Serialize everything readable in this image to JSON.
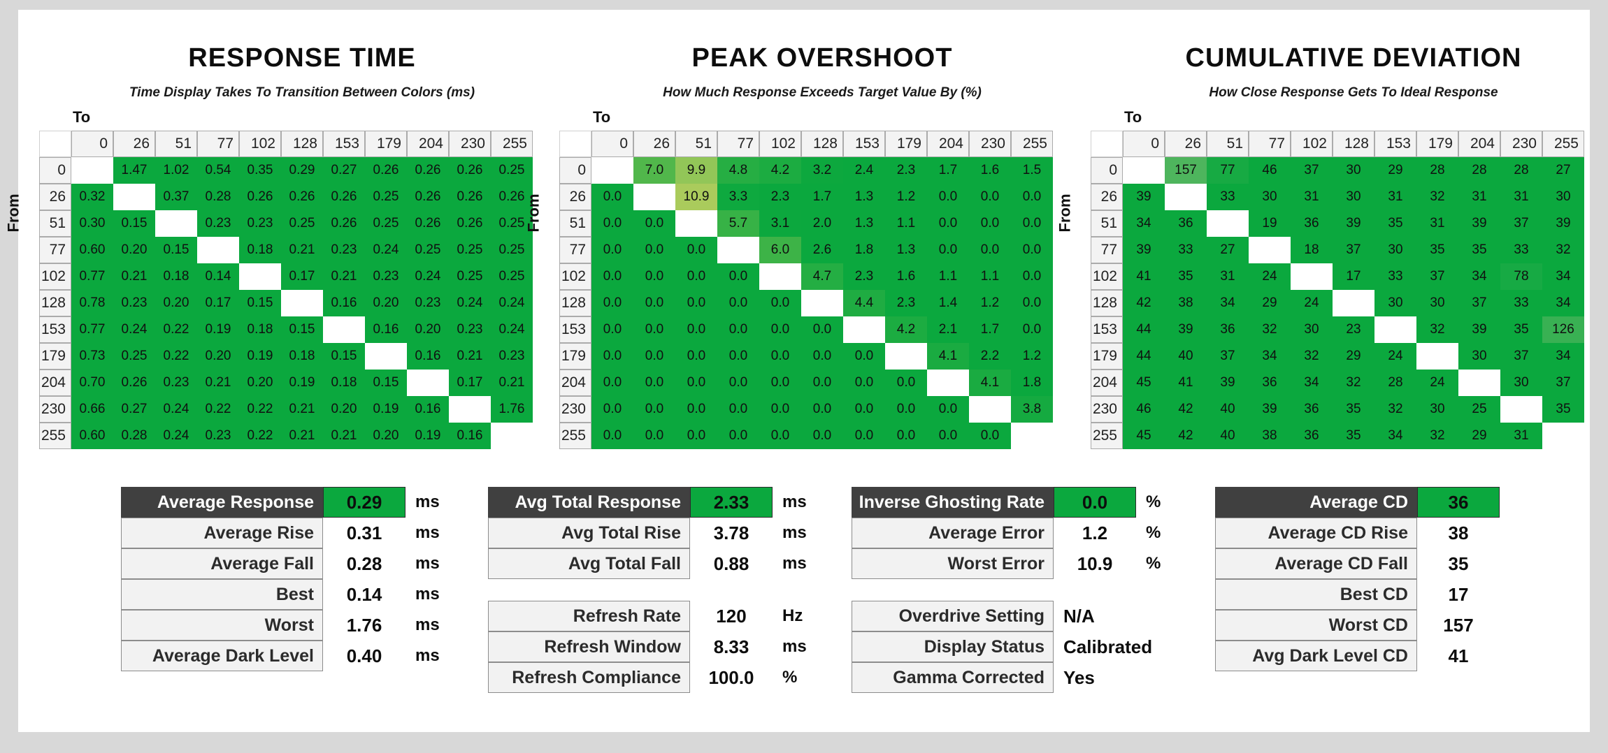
{
  "page_background": "#d8d8d8",
  "sheet_background": "#ffffff",
  "colors": {
    "base_green": "#0ba83e",
    "overshoot_max_green": "#aacb5c",
    "cd_max_green": "#50b55e",
    "dark_header": "#404040",
    "label_cell_bg": "#f2f2f2"
  },
  "axis": {
    "to_label": "To",
    "from_label": "From",
    "levels": [
      "0",
      "26",
      "51",
      "77",
      "102",
      "128",
      "153",
      "179",
      "204",
      "230",
      "255"
    ]
  },
  "chart_data": [
    {
      "type": "heatmap",
      "title": "RESPONSE TIME",
      "subtitle": "Time Display Takes To Transition Between Colors (ms)",
      "unit": "ms",
      "color_scale": "response",
      "x": [
        "0",
        "26",
        "51",
        "77",
        "102",
        "128",
        "153",
        "179",
        "204",
        "230",
        "255"
      ],
      "y": [
        "0",
        "26",
        "51",
        "77",
        "102",
        "128",
        "153",
        "179",
        "204",
        "230",
        "255"
      ],
      "values": [
        [
          null,
          "1.47",
          "1.02",
          "0.54",
          "0.35",
          "0.29",
          "0.27",
          "0.26",
          "0.26",
          "0.26",
          "0.25"
        ],
        [
          "0.32",
          null,
          "0.37",
          "0.28",
          "0.26",
          "0.26",
          "0.26",
          "0.25",
          "0.26",
          "0.26",
          "0.26"
        ],
        [
          "0.30",
          "0.15",
          null,
          "0.23",
          "0.23",
          "0.25",
          "0.26",
          "0.25",
          "0.26",
          "0.26",
          "0.25"
        ],
        [
          "0.60",
          "0.20",
          "0.15",
          null,
          "0.18",
          "0.21",
          "0.23",
          "0.24",
          "0.25",
          "0.25",
          "0.25"
        ],
        [
          "0.77",
          "0.21",
          "0.18",
          "0.14",
          null,
          "0.17",
          "0.21",
          "0.23",
          "0.24",
          "0.25",
          "0.25"
        ],
        [
          "0.78",
          "0.23",
          "0.20",
          "0.17",
          "0.15",
          null,
          "0.16",
          "0.20",
          "0.23",
          "0.24",
          "0.24"
        ],
        [
          "0.77",
          "0.24",
          "0.22",
          "0.19",
          "0.18",
          "0.15",
          null,
          "0.16",
          "0.20",
          "0.23",
          "0.24"
        ],
        [
          "0.73",
          "0.25",
          "0.22",
          "0.20",
          "0.19",
          "0.18",
          "0.15",
          null,
          "0.16",
          "0.21",
          "0.23"
        ],
        [
          "0.70",
          "0.26",
          "0.23",
          "0.21",
          "0.20",
          "0.19",
          "0.18",
          "0.15",
          null,
          "0.17",
          "0.21"
        ],
        [
          "0.66",
          "0.27",
          "0.24",
          "0.22",
          "0.22",
          "0.21",
          "0.20",
          "0.19",
          "0.16",
          null,
          "1.76"
        ],
        [
          "0.60",
          "0.28",
          "0.24",
          "0.23",
          "0.22",
          "0.21",
          "0.21",
          "0.20",
          "0.19",
          "0.16",
          null
        ]
      ]
    },
    {
      "type": "heatmap",
      "title": "PEAK OVERSHOOT",
      "subtitle": "How Much Response Exceeds Target Value By (%)",
      "unit": "%",
      "color_scale": "overshoot",
      "x": [
        "0",
        "26",
        "51",
        "77",
        "102",
        "128",
        "153",
        "179",
        "204",
        "230",
        "255"
      ],
      "y": [
        "0",
        "26",
        "51",
        "77",
        "102",
        "128",
        "153",
        "179",
        "204",
        "230",
        "255"
      ],
      "values": [
        [
          null,
          "7.0",
          "9.9",
          "4.8",
          "4.2",
          "3.2",
          "2.4",
          "2.3",
          "1.7",
          "1.6",
          "1.5"
        ],
        [
          "0.0",
          null,
          "10.9",
          "3.3",
          "2.3",
          "1.7",
          "1.3",
          "1.2",
          "0.0",
          "0.0",
          "0.0"
        ],
        [
          "0.0",
          "0.0",
          null,
          "5.7",
          "3.1",
          "2.0",
          "1.3",
          "1.1",
          "0.0",
          "0.0",
          "0.0"
        ],
        [
          "0.0",
          "0.0",
          "0.0",
          null,
          "6.0",
          "2.6",
          "1.8",
          "1.3",
          "0.0",
          "0.0",
          "0.0"
        ],
        [
          "0.0",
          "0.0",
          "0.0",
          "0.0",
          null,
          "4.7",
          "2.3",
          "1.6",
          "1.1",
          "1.1",
          "0.0"
        ],
        [
          "0.0",
          "0.0",
          "0.0",
          "0.0",
          "0.0",
          null,
          "4.4",
          "2.3",
          "1.4",
          "1.2",
          "0.0"
        ],
        [
          "0.0",
          "0.0",
          "0.0",
          "0.0",
          "0.0",
          "0.0",
          null,
          "4.2",
          "2.1",
          "1.7",
          "0.0"
        ],
        [
          "0.0",
          "0.0",
          "0.0",
          "0.0",
          "0.0",
          "0.0",
          "0.0",
          null,
          "4.1",
          "2.2",
          "1.2"
        ],
        [
          "0.0",
          "0.0",
          "0.0",
          "0.0",
          "0.0",
          "0.0",
          "0.0",
          "0.0",
          null,
          "4.1",
          "1.8"
        ],
        [
          "0.0",
          "0.0",
          "0.0",
          "0.0",
          "0.0",
          "0.0",
          "0.0",
          "0.0",
          "0.0",
          null,
          "3.8"
        ],
        [
          "0.0",
          "0.0",
          "0.0",
          "0.0",
          "0.0",
          "0.0",
          "0.0",
          "0.0",
          "0.0",
          "0.0",
          null
        ]
      ]
    },
    {
      "type": "heatmap",
      "title": "CUMULATIVE DEVIATION",
      "subtitle": "How Close Response Gets To Ideal Response",
      "unit": "",
      "color_scale": "cd",
      "x": [
        "0",
        "26",
        "51",
        "77",
        "102",
        "128",
        "153",
        "179",
        "204",
        "230",
        "255"
      ],
      "y": [
        "0",
        "26",
        "51",
        "77",
        "102",
        "128",
        "153",
        "179",
        "204",
        "230",
        "255"
      ],
      "values": [
        [
          null,
          "157",
          "77",
          "46",
          "37",
          "30",
          "29",
          "28",
          "28",
          "28",
          "27"
        ],
        [
          "39",
          null,
          "33",
          "30",
          "31",
          "30",
          "31",
          "32",
          "31",
          "31",
          "30"
        ],
        [
          "34",
          "36",
          null,
          "19",
          "36",
          "39",
          "35",
          "31",
          "39",
          "37",
          "39"
        ],
        [
          "39",
          "33",
          "27",
          null,
          "18",
          "37",
          "30",
          "35",
          "35",
          "33",
          "32"
        ],
        [
          "41",
          "35",
          "31",
          "24",
          null,
          "17",
          "33",
          "37",
          "34",
          "78",
          "34"
        ],
        [
          "42",
          "38",
          "34",
          "29",
          "24",
          null,
          "30",
          "30",
          "37",
          "33",
          "34"
        ],
        [
          "44",
          "39",
          "36",
          "32",
          "30",
          "23",
          null,
          "32",
          "39",
          "35",
          "126"
        ],
        [
          "44",
          "40",
          "37",
          "34",
          "32",
          "29",
          "24",
          null,
          "30",
          "37",
          "34"
        ],
        [
          "45",
          "41",
          "39",
          "36",
          "34",
          "32",
          "28",
          "24",
          null,
          "30",
          "37"
        ],
        [
          "46",
          "42",
          "40",
          "39",
          "36",
          "35",
          "32",
          "30",
          "25",
          null,
          "35"
        ],
        [
          "45",
          "42",
          "40",
          "38",
          "36",
          "35",
          "34",
          "32",
          "29",
          "31",
          null
        ]
      ]
    }
  ],
  "summary_blocks": [
    {
      "name": "response-time-summary",
      "rows": [
        {
          "label": "Average Response",
          "value": "0.29",
          "unit": "ms",
          "header": true
        },
        {
          "label": "Average Rise",
          "value": "0.31",
          "unit": "ms"
        },
        {
          "label": "Average Fall",
          "value": "0.28",
          "unit": "ms"
        },
        {
          "label": "Best",
          "value": "0.14",
          "unit": "ms"
        },
        {
          "label": "Worst",
          "value": "1.76",
          "unit": "ms"
        },
        {
          "label": "Average Dark Level",
          "value": "0.40",
          "unit": "ms"
        }
      ]
    },
    {
      "name": "total-response-summary",
      "rows": [
        {
          "label": "Avg Total Response",
          "value": "2.33",
          "unit": "ms",
          "header": true
        },
        {
          "label": "Avg Total Rise",
          "value": "3.78",
          "unit": "ms"
        },
        {
          "label": "Avg Total Fall",
          "value": "0.88",
          "unit": "ms"
        }
      ]
    },
    {
      "name": "refresh-summary",
      "rows": [
        {
          "label": "Refresh Rate",
          "value": "120",
          "unit": "Hz"
        },
        {
          "label": "Refresh Window",
          "value": "8.33",
          "unit": "ms"
        },
        {
          "label": "Refresh Compliance",
          "value": "100.0",
          "unit": "%"
        }
      ]
    },
    {
      "name": "error-summary",
      "rows": [
        {
          "label": "Inverse Ghosting Rate",
          "value": "0.0",
          "unit": "%",
          "header": true
        },
        {
          "label": "Average Error",
          "value": "1.2",
          "unit": "%"
        },
        {
          "label": "Worst Error",
          "value": "10.9",
          "unit": "%"
        }
      ]
    },
    {
      "name": "status-summary",
      "rows": [
        {
          "label": "Overdrive Setting",
          "value": "N/A",
          "align": "left"
        },
        {
          "label": "Display Status",
          "value": "Calibrated",
          "align": "left"
        },
        {
          "label": "Gamma Corrected",
          "value": "Yes",
          "align": "left"
        }
      ]
    },
    {
      "name": "cd-summary",
      "rows": [
        {
          "label": "Average CD",
          "value": "36",
          "header": true
        },
        {
          "label": "Average CD Rise",
          "value": "38"
        },
        {
          "label": "Average CD Fall",
          "value": "35"
        },
        {
          "label": "Best CD",
          "value": "17"
        },
        {
          "label": "Worst CD",
          "value": "157"
        },
        {
          "label": "Avg Dark Level CD",
          "value": "41"
        }
      ]
    }
  ]
}
